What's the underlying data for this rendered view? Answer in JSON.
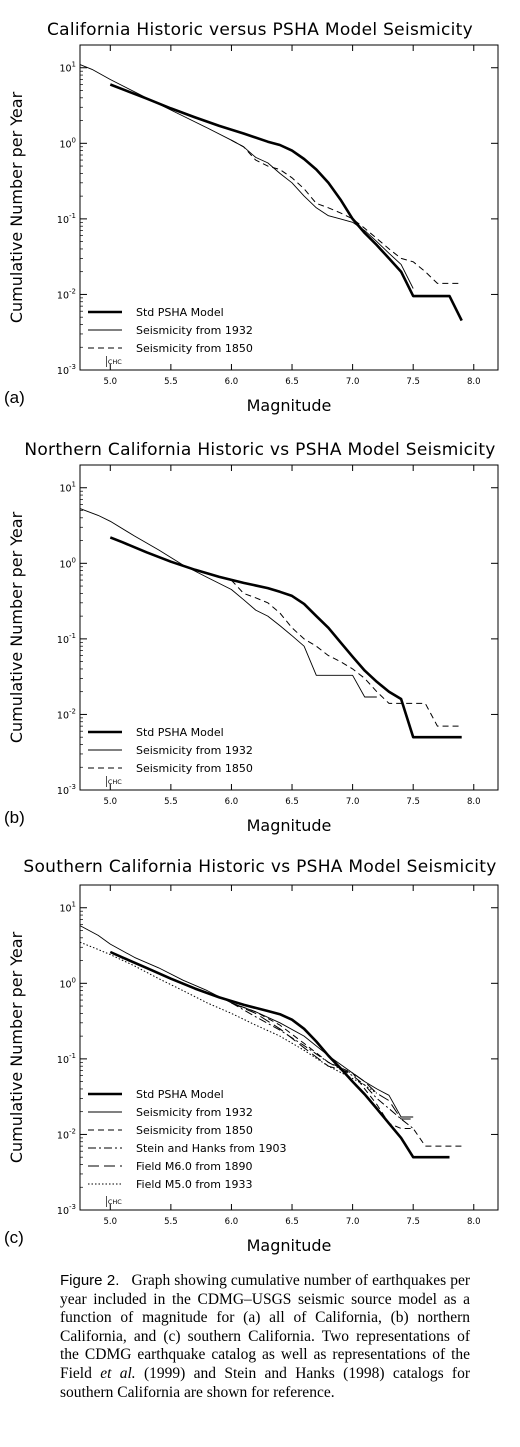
{
  "chart_data": [
    {
      "type": "line",
      "panel_label": "(a)",
      "title": "California Historic versus PSHA Model Seismicity",
      "xlabel": "Magnitude",
      "ylabel": "Cumulative Number per Year",
      "xlim": [
        4.75,
        8.2
      ],
      "ylim": [
        0.001,
        20
      ],
      "yscale": "log",
      "xticks": [
        "5.0",
        "5.5",
        "6.0",
        "6.5",
        "7.0",
        "7.5",
        "8.0"
      ],
      "yticks": [
        "10^1",
        "10^0",
        "10^-1",
        "10^-2",
        "10^-3"
      ],
      "annotation": "CHC",
      "legend_position": "bottom-left",
      "series": [
        {
          "name": "Std PSHA Model",
          "style": "thick",
          "x": [
            5.0,
            5.1,
            5.3,
            5.5,
            5.7,
            5.9,
            6.1,
            6.3,
            6.4,
            6.5,
            6.6,
            6.7,
            6.8,
            6.9,
            7.0,
            7.1,
            7.2,
            7.3,
            7.4,
            7.5,
            7.6,
            7.7,
            7.8,
            7.9
          ],
          "y": [
            6.0,
            5.2,
            3.9,
            2.9,
            2.2,
            1.7,
            1.35,
            1.05,
            0.95,
            0.8,
            0.62,
            0.45,
            0.3,
            0.18,
            0.1,
            0.065,
            0.045,
            0.03,
            0.02,
            0.0095,
            0.0095,
            0.0095,
            0.0095,
            0.0045
          ]
        },
        {
          "name": "Seismicity from 1932",
          "style": "thin",
          "x": [
            4.75,
            4.85,
            5.0,
            5.2,
            5.4,
            5.6,
            5.8,
            6.0,
            6.1,
            6.2,
            6.3,
            6.4,
            6.5,
            6.6,
            6.7,
            6.8,
            6.9,
            7.0,
            7.1,
            7.2,
            7.3,
            7.4,
            7.5
          ],
          "y": [
            11.0,
            9.5,
            7.0,
            4.8,
            3.3,
            2.3,
            1.6,
            1.1,
            0.9,
            0.65,
            0.55,
            0.4,
            0.3,
            0.2,
            0.14,
            0.11,
            0.1,
            0.09,
            0.07,
            0.05,
            0.035,
            0.025,
            0.012
          ]
        },
        {
          "name": "Seismicity from 1850",
          "style": "dashed",
          "x": [
            6.0,
            6.1,
            6.2,
            6.3,
            6.4,
            6.5,
            6.6,
            6.7,
            6.8,
            6.9,
            7.0,
            7.1,
            7.2,
            7.3,
            7.4,
            7.5,
            7.6,
            7.7,
            7.8,
            7.9
          ],
          "y": [
            1.1,
            0.9,
            0.6,
            0.5,
            0.45,
            0.35,
            0.25,
            0.16,
            0.14,
            0.12,
            0.1,
            0.075,
            0.055,
            0.04,
            0.03,
            0.027,
            0.02,
            0.014,
            0.014,
            0.014
          ]
        }
      ]
    },
    {
      "type": "line",
      "panel_label": "(b)",
      "title": "Northern California Historic vs PSHA Model Seismicity",
      "xlabel": "Magnitude",
      "ylabel": "Cumulative Number per Year",
      "xlim": [
        4.75,
        8.2
      ],
      "ylim": [
        0.001,
        20
      ],
      "yscale": "log",
      "xticks": [
        "5.0",
        "5.5",
        "6.0",
        "6.5",
        "7.0",
        "7.5",
        "8.0"
      ],
      "yticks": [
        "10^1",
        "10^0",
        "10^-1",
        "10^-2",
        "10^-3"
      ],
      "annotation": "CHC",
      "legend_position": "bottom-left",
      "series": [
        {
          "name": "Std PSHA Model",
          "style": "thick",
          "x": [
            5.0,
            5.1,
            5.3,
            5.5,
            5.7,
            5.9,
            6.1,
            6.3,
            6.4,
            6.5,
            6.6,
            6.7,
            6.8,
            6.9,
            7.0,
            7.1,
            7.2,
            7.3,
            7.4,
            7.5,
            7.6,
            7.7,
            7.8,
            7.9
          ],
          "y": [
            2.2,
            1.9,
            1.4,
            1.05,
            0.82,
            0.66,
            0.55,
            0.47,
            0.42,
            0.37,
            0.29,
            0.2,
            0.14,
            0.09,
            0.058,
            0.038,
            0.027,
            0.02,
            0.016,
            0.005,
            0.005,
            0.005,
            0.005,
            0.005
          ]
        },
        {
          "name": "Seismicity from 1932",
          "style": "thin",
          "x": [
            4.75,
            4.9,
            5.0,
            5.2,
            5.4,
            5.6,
            5.8,
            6.0,
            6.1,
            6.2,
            6.3,
            6.4,
            6.5,
            6.6,
            6.7,
            6.8,
            6.9,
            7.0,
            7.1,
            7.2
          ],
          "y": [
            5.3,
            4.3,
            3.6,
            2.3,
            1.5,
            0.95,
            0.65,
            0.45,
            0.33,
            0.24,
            0.2,
            0.15,
            0.11,
            0.08,
            0.033,
            0.033,
            0.033,
            0.033,
            0.017,
            0.017
          ]
        },
        {
          "name": "Seismicity from 1850",
          "style": "dashed",
          "x": [
            6.0,
            6.1,
            6.2,
            6.3,
            6.4,
            6.5,
            6.6,
            6.7,
            6.8,
            6.9,
            7.0,
            7.1,
            7.2,
            7.3,
            7.4,
            7.5,
            7.6,
            7.7,
            7.8,
            7.9
          ],
          "y": [
            0.6,
            0.4,
            0.35,
            0.3,
            0.22,
            0.14,
            0.1,
            0.08,
            0.06,
            0.05,
            0.04,
            0.03,
            0.02,
            0.014,
            0.014,
            0.014,
            0.014,
            0.007,
            0.007,
            0.007
          ]
        }
      ]
    },
    {
      "type": "line",
      "panel_label": "(c)",
      "title": "Southern California Historic vs PSHA Model Seismicity",
      "xlabel": "Magnitude",
      "ylabel": "Cumulative Number per Year",
      "xlim": [
        4.75,
        8.2
      ],
      "ylim": [
        0.001,
        20
      ],
      "yscale": "log",
      "xticks": [
        "5.0",
        "5.5",
        "6.0",
        "6.5",
        "7.0",
        "7.5",
        "8.0"
      ],
      "yticks": [
        "10^1",
        "10^0",
        "10^-1",
        "10^-2",
        "10^-3"
      ],
      "annotation": "CHC",
      "legend_position": "bottom-left",
      "series": [
        {
          "name": "Std PSHA Model",
          "style": "thick",
          "x": [
            5.0,
            5.1,
            5.3,
            5.5,
            5.7,
            5.9,
            6.1,
            6.3,
            6.4,
            6.5,
            6.6,
            6.7,
            6.8,
            6.9,
            7.0,
            7.1,
            7.2,
            7.3,
            7.4,
            7.5,
            7.6,
            7.7,
            7.8
          ],
          "y": [
            2.6,
            2.2,
            1.6,
            1.15,
            0.85,
            0.65,
            0.52,
            0.43,
            0.39,
            0.33,
            0.25,
            0.17,
            0.11,
            0.075,
            0.05,
            0.034,
            0.022,
            0.014,
            0.009,
            0.005,
            0.005,
            0.005,
            0.005
          ]
        },
        {
          "name": "Seismicity from 1932",
          "style": "thin",
          "x": [
            4.75,
            4.9,
            5.0,
            5.2,
            5.4,
            5.6,
            5.8,
            6.0,
            6.2,
            6.4,
            6.6,
            6.8,
            7.0,
            7.1,
            7.2,
            7.3,
            7.4,
            7.5
          ],
          "y": [
            5.8,
            4.3,
            3.3,
            2.2,
            1.6,
            1.1,
            0.8,
            0.55,
            0.42,
            0.3,
            0.2,
            0.11,
            0.065,
            0.05,
            0.04,
            0.033,
            0.017,
            0.017
          ]
        },
        {
          "name": "Seismicity from 1850",
          "style": "dashed",
          "x": [
            6.0,
            6.2,
            6.4,
            6.6,
            6.8,
            7.0,
            7.1,
            7.2,
            7.3,
            7.4,
            7.5,
            7.6,
            7.7,
            7.8,
            7.9
          ],
          "y": [
            0.55,
            0.42,
            0.28,
            0.16,
            0.09,
            0.065,
            0.04,
            0.025,
            0.014,
            0.012,
            0.012,
            0.007,
            0.007,
            0.007,
            0.007
          ]
        },
        {
          "name": "Stein and Hanks from 1903",
          "style": "dashdot",
          "x": [
            6.0,
            6.2,
            6.4,
            6.6,
            6.8,
            7.0,
            7.1,
            7.2,
            7.3,
            7.4,
            7.5
          ],
          "y": [
            0.55,
            0.36,
            0.24,
            0.15,
            0.09,
            0.06,
            0.045,
            0.03,
            0.022,
            0.016,
            0.012
          ]
        },
        {
          "name": "Field M6.0 from 1890",
          "style": "longdash",
          "x": [
            6.0,
            6.2,
            6.4,
            6.6,
            6.8,
            7.0,
            7.1,
            7.2,
            7.3,
            7.4,
            7.5
          ],
          "y": [
            0.55,
            0.4,
            0.25,
            0.14,
            0.08,
            0.065,
            0.05,
            0.035,
            0.028,
            0.016,
            0.016
          ]
        },
        {
          "name": "Field M5.0 from 1933",
          "style": "dotted",
          "x": [
            4.75,
            4.9,
            5.0,
            5.2,
            5.4,
            5.6,
            5.8,
            6.0,
            6.2,
            6.4,
            6.6,
            6.8,
            7.0,
            7.1,
            7.2
          ],
          "y": [
            3.5,
            2.8,
            2.4,
            1.7,
            1.15,
            0.8,
            0.55,
            0.4,
            0.28,
            0.2,
            0.13,
            0.08,
            0.055,
            0.045,
            0.035
          ]
        }
      ]
    }
  ],
  "caption": {
    "figure_label": "Figure 2.",
    "text_a": "Graph showing cumulative number of earthquakes per year included in the ",
    "sc_1": "CDMG–USGS",
    "text_b": " seismic source model as a function of magnitude for (a) all of California, (b) northern California, and (c) southern California. Two representations of the ",
    "sc_2": "CDMG",
    "text_c": " earthquake catalog as well as representations of the Field ",
    "ital": "et al.",
    "text_d": " (1999) and Stein and Hanks (1998) catalogs for southern California are shown for reference."
  }
}
